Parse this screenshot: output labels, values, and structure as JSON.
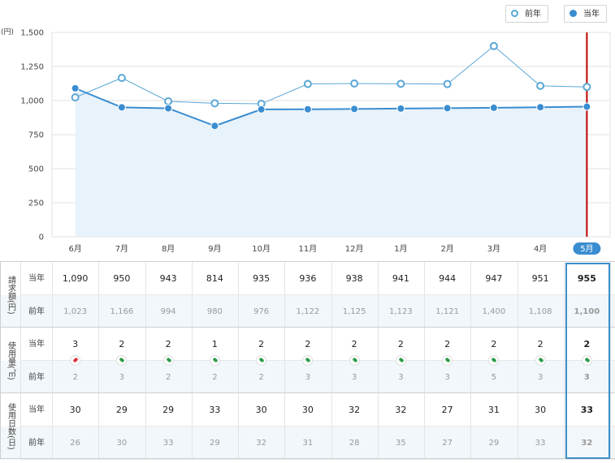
{
  "legend": {
    "prev_label": "前年",
    "cur_label": "当年"
  },
  "colors": {
    "cur": "#3a8dd0",
    "prev": "#5aa7d6",
    "area": "#e8f2fa",
    "marker": "#c00000",
    "highlight": "#3a8fc9",
    "up": "#d9343a",
    "down": "#2e9b4a"
  },
  "chart_data": {
    "type": "line",
    "unit_label": "(円)",
    "categories": [
      "6月",
      "7月",
      "8月",
      "9月",
      "10月",
      "11月",
      "12月",
      "1月",
      "2月",
      "3月",
      "4月",
      "5月"
    ],
    "series": [
      {
        "name": "当年",
        "values": [
          1090,
          950,
          943,
          814,
          935,
          936,
          938,
          941,
          944,
          947,
          951,
          955
        ],
        "style": "filled-marker-area"
      },
      {
        "name": "前年",
        "values": [
          1023,
          1166,
          994,
          980,
          976,
          1122,
          1125,
          1123,
          1121,
          1400,
          1108,
          1100
        ],
        "style": "hollow-marker"
      }
    ],
    "yticks": [
      "0",
      "250",
      "500",
      "750",
      "1,000",
      "1,250",
      "1,500"
    ],
    "ylim": [
      0,
      1500
    ],
    "grid": true,
    "current_category": "5月"
  },
  "table": {
    "groups": [
      {
        "label": "請求額(円)",
        "rows": [
          {
            "label": "当年",
            "values": [
              "1,090",
              "950",
              "943",
              "814",
              "935",
              "936",
              "938",
              "941",
              "944",
              "947",
              "951",
              "955"
            ]
          },
          {
            "label": "前年",
            "values": [
              "1,023",
              "1,166",
              "994",
              "980",
              "976",
              "1,122",
              "1,125",
              "1,123",
              "1,121",
              "1,400",
              "1,108",
              "1,100"
            ]
          }
        ]
      },
      {
        "label": "使用量(㎥)",
        "rows": [
          {
            "label": "当年",
            "values": [
              "3",
              "2",
              "2",
              "1",
              "2",
              "2",
              "2",
              "2",
              "2",
              "2",
              "2",
              "2"
            ]
          },
          {
            "label": "前年",
            "values": [
              "2",
              "3",
              "2",
              "2",
              "2",
              "3",
              "3",
              "3",
              "3",
              "5",
              "3",
              "3"
            ]
          }
        ],
        "trend": [
          "up",
          "down",
          "down",
          "down",
          "down",
          "down",
          "down",
          "down",
          "down",
          "down",
          "down",
          "down"
        ]
      },
      {
        "label": "使用日数(日)",
        "rows": [
          {
            "label": "当年",
            "values": [
              "30",
              "29",
              "29",
              "33",
              "30",
              "30",
              "32",
              "32",
              "27",
              "31",
              "30",
              "33"
            ]
          },
          {
            "label": "前年",
            "values": [
              "26",
              "30",
              "33",
              "29",
              "32",
              "31",
              "28",
              "35",
              "27",
              "29",
              "33",
              "32"
            ]
          }
        ]
      }
    ]
  }
}
